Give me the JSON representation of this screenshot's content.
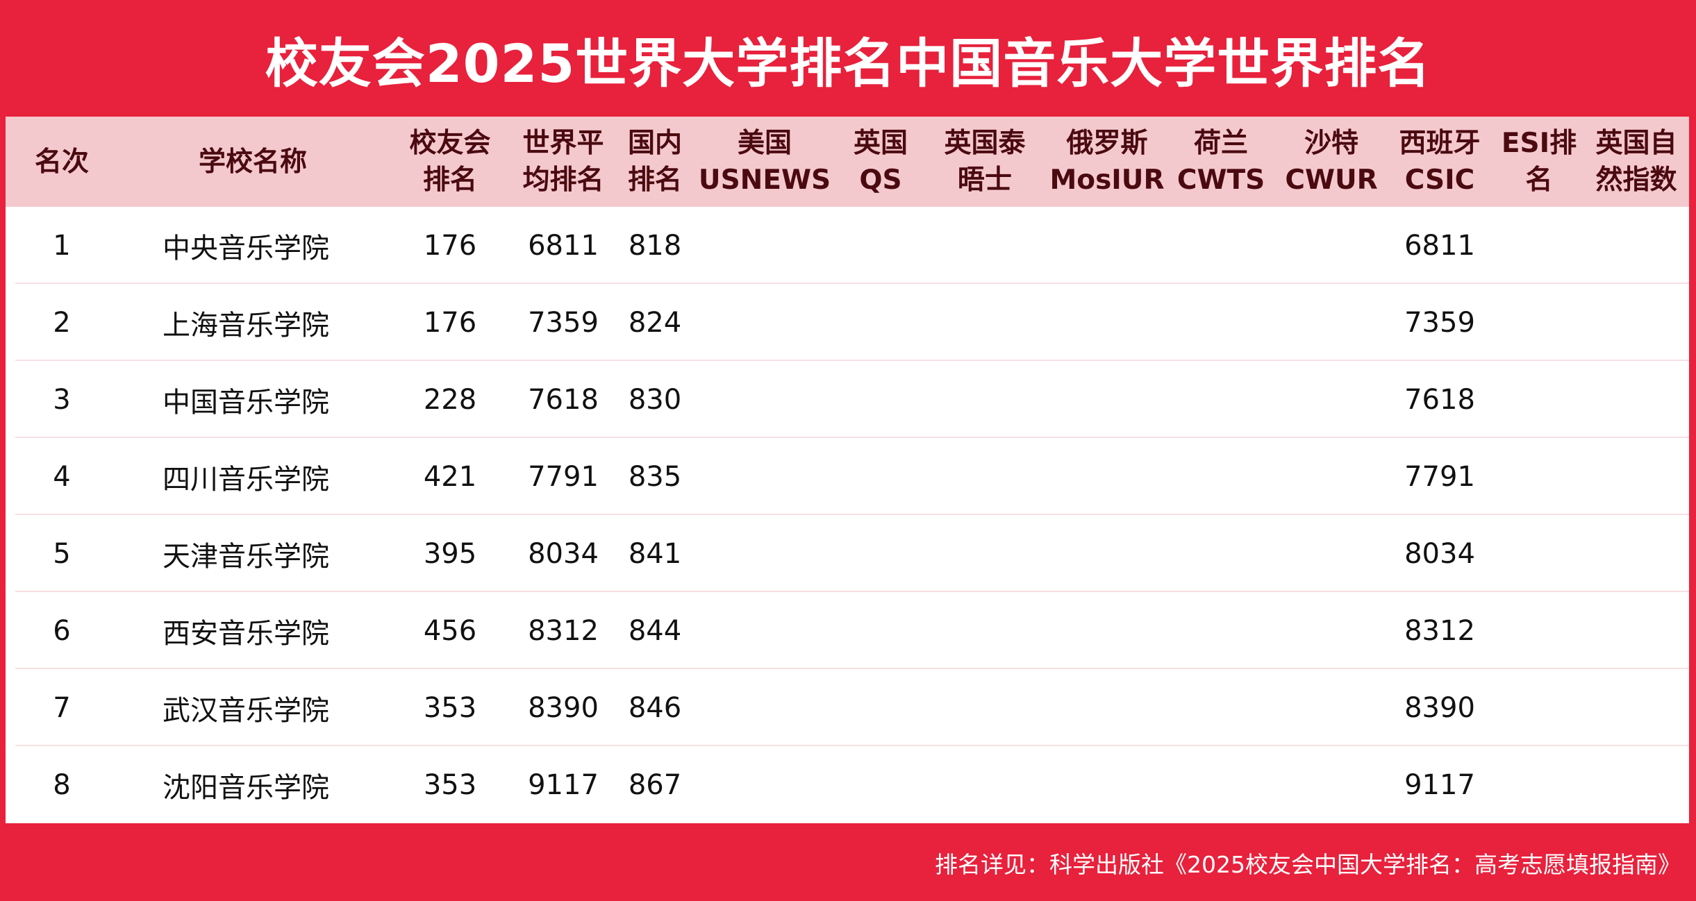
{
  "title": "校友会2025世界大学排名中国音乐大学世界排名",
  "headers": {
    "rank": "名次",
    "school": "学校名称",
    "cuaa": "校友会\n排名",
    "world_avg": "世界平\n均排名",
    "domestic": "国内\n排名",
    "usnews": "美国\nUSNEWS",
    "qs": "英国\nQS",
    "times": "英国泰\n晤士",
    "mosiur": "俄罗斯\nMosIUR",
    "cwts": "荷兰\nCWTS",
    "cwur": "沙特\nCWUR",
    "csic": "西班牙\nCSIC",
    "esi": "ESI排\n名",
    "nature": "英国自\n然指数"
  },
  "rows": [
    {
      "rank": "1",
      "school": "中央音乐学院",
      "cuaa": "176",
      "world_avg": "6811",
      "domestic": "818",
      "csic": "6811"
    },
    {
      "rank": "2",
      "school": "上海音乐学院",
      "cuaa": "176",
      "world_avg": "7359",
      "domestic": "824",
      "csic": "7359"
    },
    {
      "rank": "3",
      "school": "中国音乐学院",
      "cuaa": "228",
      "world_avg": "7618",
      "domestic": "830",
      "csic": "7618"
    },
    {
      "rank": "4",
      "school": "四川音乐学院",
      "cuaa": "421",
      "world_avg": "7791",
      "domestic": "835",
      "csic": "7791"
    },
    {
      "rank": "5",
      "school": "天津音乐学院",
      "cuaa": "395",
      "world_avg": "8034",
      "domestic": "841",
      "csic": "8034"
    },
    {
      "rank": "6",
      "school": "西安音乐学院",
      "cuaa": "456",
      "world_avg": "8312",
      "domestic": "844",
      "csic": "8312"
    },
    {
      "rank": "7",
      "school": "武汉音乐学院",
      "cuaa": "353",
      "world_avg": "8390",
      "domestic": "846",
      "csic": "8390"
    },
    {
      "rank": "8",
      "school": "沈阳音乐学院",
      "cuaa": "353",
      "world_avg": "9117",
      "domestic": "867",
      "csic": "9117"
    }
  ],
  "footer": "排名详见：科学出版社《2025校友会中国大学排名：高考志愿填报指南》",
  "colors": {
    "brand_red": "#e8213c",
    "header_pink": "#f4c9ce",
    "header_text": "#4a0a10"
  }
}
